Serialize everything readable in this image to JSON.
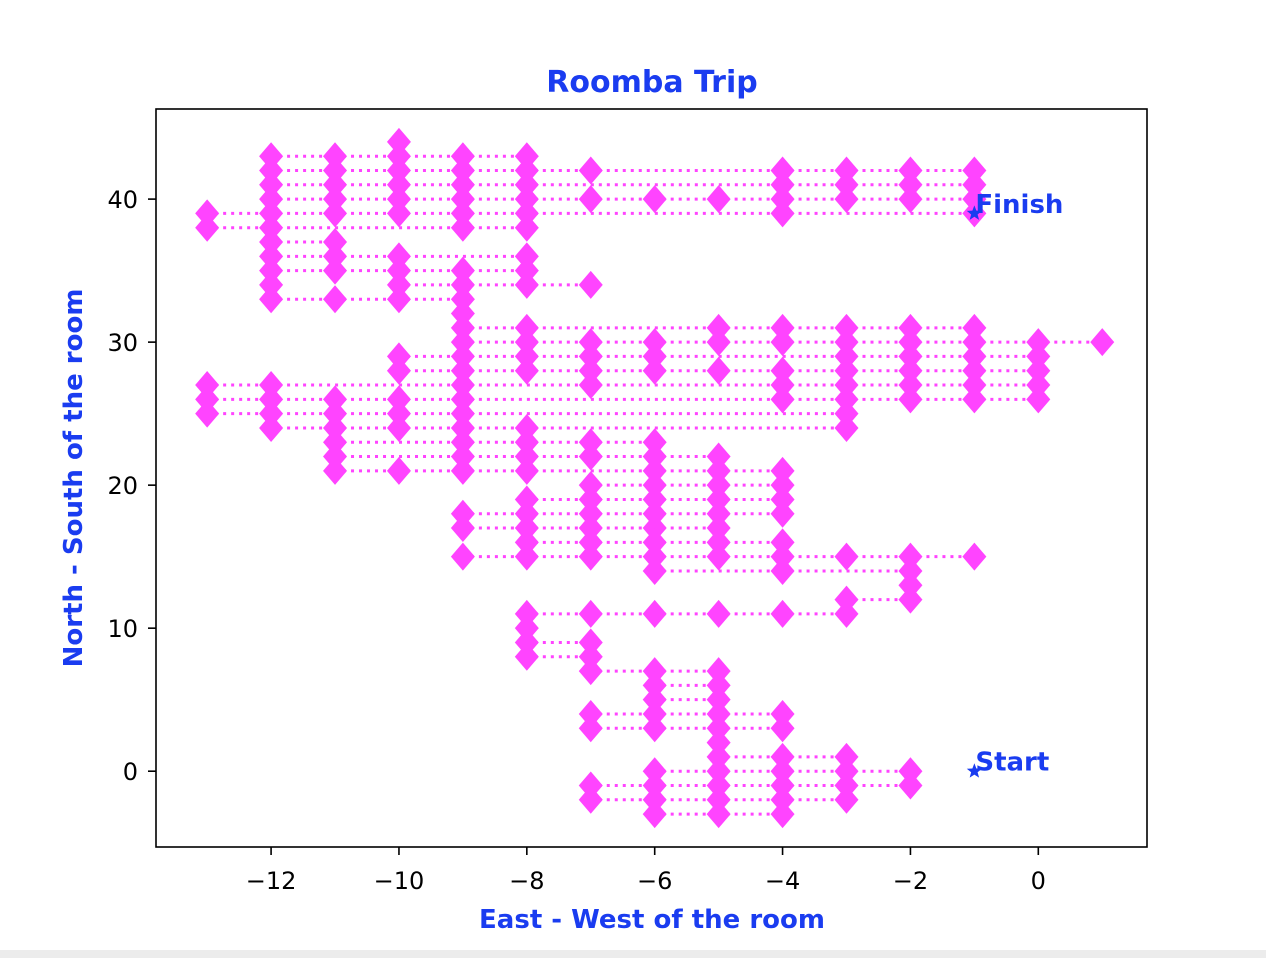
{
  "colors": {
    "accent": "#1a3cf0",
    "marker": "#ff44ff",
    "axis": "#000000"
  },
  "chart_data": {
    "type": "line",
    "title": "Roomba Trip",
    "xlabel": "East - West of the room",
    "ylabel": "North - South of the room",
    "xlim": [
      -13.8,
      1.7
    ],
    "ylim": [
      -5.3,
      46.3
    ],
    "xticks": [
      -12,
      -10,
      -8,
      -6,
      -4,
      -2,
      0
    ],
    "xtick_labels": [
      "−12",
      "−10",
      "−8",
      "−6",
      "−4",
      "−2",
      "0"
    ],
    "yticks": [
      0,
      10,
      20,
      30,
      40
    ],
    "ytick_labels": [
      "0",
      "10",
      "20",
      "30",
      "40"
    ],
    "grid": false,
    "marker": "diamond",
    "line_style": "dotted",
    "annotations": [
      {
        "text": "Start",
        "x": -1,
        "y": 0
      },
      {
        "text": "Finish",
        "x": -1,
        "y": 39
      }
    ],
    "rows": [
      {
        "y": 43,
        "x": [
          -12,
          -11,
          -10,
          -9,
          -8
        ]
      },
      {
        "y": 42,
        "x": [
          -12,
          -11,
          -10,
          -9,
          -8,
          -7,
          -4,
          -3,
          -2,
          -1
        ]
      },
      {
        "y": 41,
        "x": [
          -12,
          -11,
          -10,
          -9,
          -8,
          -4,
          -3,
          -2,
          -1
        ]
      },
      {
        "y": 40,
        "x": [
          -12,
          -11,
          -10,
          -9,
          -8,
          -7,
          -6,
          -5,
          -4,
          -3,
          -2,
          -1
        ]
      },
      {
        "y": 39,
        "x": [
          -13,
          -12,
          -11,
          -10,
          -9,
          -8,
          -4,
          -1
        ]
      },
      {
        "y": 38,
        "x": [
          -13,
          -12,
          -9,
          -8
        ]
      },
      {
        "y": 37,
        "x": [
          -12,
          -11
        ]
      },
      {
        "y": 36,
        "x": [
          -12,
          -11,
          -10,
          -8
        ]
      },
      {
        "y": 35,
        "x": [
          -12,
          -11,
          -10,
          -9,
          -8
        ]
      },
      {
        "y": 34,
        "x": [
          -10,
          -9,
          -8,
          -7
        ]
      },
      {
        "y": 33,
        "x": [
          -12,
          -11,
          -10,
          -9
        ]
      },
      {
        "y": 32,
        "x": [
          -9
        ]
      },
      {
        "y": 31,
        "x": [
          -9,
          -8,
          -5,
          -4,
          -3,
          -2,
          -1
        ]
      },
      {
        "y": 30,
        "x": [
          -9,
          -8,
          -7,
          -6,
          -5,
          -4,
          -3,
          -2,
          -1,
          0,
          1
        ]
      },
      {
        "y": 29,
        "x": [
          -10,
          -9,
          -8,
          -7,
          -6,
          -3,
          -2,
          -1,
          0
        ]
      },
      {
        "y": 28,
        "x": [
          -10,
          -9,
          -8,
          -7,
          -6,
          -5,
          -4,
          -3,
          -2,
          -1,
          0
        ]
      },
      {
        "y": 27,
        "x": [
          -13,
          -12,
          -9,
          -7,
          -4,
          -3,
          -2,
          -1,
          0
        ]
      },
      {
        "y": 26,
        "x": [
          -13,
          -12,
          -11,
          -10,
          -9,
          -4,
          -3,
          -2,
          -1,
          0
        ]
      },
      {
        "y": 25,
        "x": [
          -13,
          -12,
          -11,
          -10,
          -9,
          -3
        ]
      },
      {
        "y": 24,
        "x": [
          -12,
          -11,
          -10,
          -9,
          -8,
          -3
        ]
      },
      {
        "y": 23,
        "x": [
          -11,
          -9,
          -8,
          -7,
          -6
        ]
      },
      {
        "y": 22,
        "x": [
          -11,
          -9,
          -8,
          -7,
          -6,
          -5
        ]
      },
      {
        "y": 21,
        "x": [
          -11,
          -10,
          -9,
          -8,
          -6,
          -5,
          -4
        ]
      },
      {
        "y": 20,
        "x": [
          -7,
          -6,
          -5,
          -4
        ]
      },
      {
        "y": 19,
        "x": [
          -8,
          -7,
          -6,
          -5,
          -4
        ]
      },
      {
        "y": 18,
        "x": [
          -9,
          -8,
          -7,
          -6,
          -5,
          -4
        ]
      },
      {
        "y": 17,
        "x": [
          -9,
          -8,
          -7,
          -6,
          -5
        ]
      },
      {
        "y": 16,
        "x": [
          -8,
          -7,
          -6,
          -5,
          -4
        ]
      },
      {
        "y": 15,
        "x": [
          -9,
          -8,
          -7,
          -6,
          -5,
          -4,
          -3,
          -2,
          -1
        ]
      },
      {
        "y": 14,
        "x": [
          -6,
          -4,
          -2
        ]
      },
      {
        "y": 13,
        "x": [
          -2
        ]
      },
      {
        "y": 12,
        "x": [
          -3,
          -2
        ]
      },
      {
        "y": 11,
        "x": [
          -8,
          -7,
          -6,
          -5,
          -4,
          -3
        ]
      },
      {
        "y": 10,
        "x": [
          -8
        ]
      },
      {
        "y": 9,
        "x": [
          -8,
          -7
        ]
      },
      {
        "y": 8,
        "x": [
          -8,
          -7
        ]
      },
      {
        "y": 7,
        "x": [
          -7,
          -6,
          -5
        ]
      },
      {
        "y": 6,
        "x": [
          -6,
          -5
        ]
      },
      {
        "y": 5,
        "x": [
          -6,
          -5
        ]
      },
      {
        "y": 4,
        "x": [
          -7,
          -6,
          -5,
          -4
        ]
      },
      {
        "y": 3,
        "x": [
          -7,
          -6,
          -5,
          -4
        ]
      },
      {
        "y": 2,
        "x": [
          -5
        ]
      },
      {
        "y": 1,
        "x": [
          -5,
          -4,
          -3
        ]
      },
      {
        "y": 0,
        "x": [
          -6,
          -5,
          -4,
          -3,
          -2
        ]
      },
      {
        "y": -1,
        "x": [
          -7,
          -6,
          -5,
          -4,
          -3,
          -2
        ]
      },
      {
        "y": -2,
        "x": [
          -7,
          -6,
          -5,
          -4,
          -3
        ]
      },
      {
        "y": -3,
        "x": [
          -6,
          -5,
          -4
        ]
      }
    ],
    "vertical_runs": [
      {
        "x": -13,
        "y0": 38,
        "y1": 39
      },
      {
        "x": -13,
        "y0": 25,
        "y1": 27
      },
      {
        "x": -12,
        "y0": 33,
        "y1": 43
      },
      {
        "x": -12,
        "y0": 24,
        "y1": 27
      },
      {
        "x": -11,
        "y0": 35,
        "y1": 37
      },
      {
        "x": -11,
        "y0": 39,
        "y1": 43
      },
      {
        "x": -11,
        "y0": 21,
        "y1": 26
      },
      {
        "x": -10,
        "y0": 39,
        "y1": 44
      },
      {
        "x": -10,
        "y0": 33,
        "y1": 36
      },
      {
        "x": -10,
        "y0": 28,
        "y1": 29
      },
      {
        "x": -10,
        "y0": 24,
        "y1": 26
      },
      {
        "x": -9,
        "y0": 21,
        "y1": 35
      },
      {
        "x": -9,
        "y0": 38,
        "y1": 43
      },
      {
        "x": -9,
        "y0": 17,
        "y1": 18
      },
      {
        "x": -8,
        "y0": 38,
        "y1": 43
      },
      {
        "x": -8,
        "y0": 34,
        "y1": 36
      },
      {
        "x": -8,
        "y0": 28,
        "y1": 31
      },
      {
        "x": -8,
        "y0": 21,
        "y1": 24
      },
      {
        "x": -8,
        "y0": 15,
        "y1": 19
      },
      {
        "x": -8,
        "y0": 8,
        "y1": 11
      },
      {
        "x": -7,
        "y0": 27,
        "y1": 30
      },
      {
        "x": -7,
        "y0": 22,
        "y1": 23
      },
      {
        "x": -7,
        "y0": 15,
        "y1": 20
      },
      {
        "x": -7,
        "y0": 7,
        "y1": 9
      },
      {
        "x": -7,
        "y0": 3,
        "y1": 4
      },
      {
        "x": -7,
        "y0": -2,
        "y1": -1
      },
      {
        "x": -6,
        "y0": 28,
        "y1": 30
      },
      {
        "x": -6,
        "y0": 14,
        "y1": 23
      },
      {
        "x": -6,
        "y0": 3,
        "y1": 7
      },
      {
        "x": -6,
        "y0": -3,
        "y1": 0
      },
      {
        "x": -5,
        "y0": 30,
        "y1": 31
      },
      {
        "x": -5,
        "y0": 15,
        "y1": 22
      },
      {
        "x": -5,
        "y0": -3,
        "y1": 7
      },
      {
        "x": -4,
        "y0": 39,
        "y1": 42
      },
      {
        "x": -4,
        "y0": 30,
        "y1": 31
      },
      {
        "x": -4,
        "y0": 26,
        "y1": 28
      },
      {
        "x": -4,
        "y0": 18,
        "y1": 21
      },
      {
        "x": -4,
        "y0": 14,
        "y1": 16
      },
      {
        "x": -4,
        "y0": 3,
        "y1": 4
      },
      {
        "x": -4,
        "y0": -3,
        "y1": 1
      },
      {
        "x": -3,
        "y0": 40,
        "y1": 42
      },
      {
        "x": -3,
        "y0": 24,
        "y1": 31
      },
      {
        "x": -3,
        "y0": 11,
        "y1": 12
      },
      {
        "x": -3,
        "y0": -2,
        "y1": 1
      },
      {
        "x": -2,
        "y0": 40,
        "y1": 42
      },
      {
        "x": -2,
        "y0": 26,
        "y1": 31
      },
      {
        "x": -2,
        "y0": 12,
        "y1": 15
      },
      {
        "x": -2,
        "y0": -1,
        "y1": 0
      },
      {
        "x": -1,
        "y0": 39,
        "y1": 42
      },
      {
        "x": -1,
        "y0": 26,
        "y1": 31
      },
      {
        "x": 0,
        "y0": 26,
        "y1": 30
      }
    ]
  }
}
